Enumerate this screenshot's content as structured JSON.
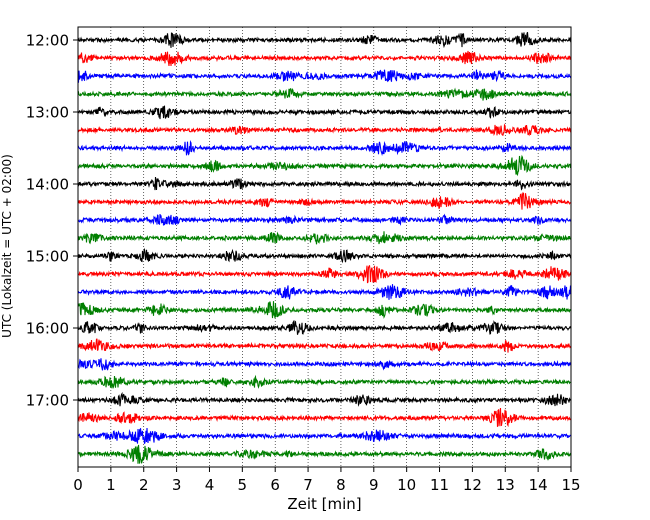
{
  "chart_data": {
    "type": "line",
    "title": "",
    "xlabel": "Zeit  [min]",
    "ylabel": "UTC (Lokalzeit = UTC + 02:00)",
    "xlim": [
      0,
      15
    ],
    "x_ticks": [
      "0",
      "1",
      "2",
      "3",
      "4",
      "5",
      "6",
      "7",
      "8",
      "9",
      "10",
      "11",
      "12",
      "13",
      "14",
      "15"
    ],
    "y_tick_labels": [
      "12:00",
      "13:00",
      "14:00",
      "15:00",
      "16:00",
      "17:00"
    ],
    "trace_colors": [
      "#000000",
      "#ff0000",
      "#0000ff",
      "#007f00"
    ],
    "grid": {
      "x_dotted": true,
      "y": false
    },
    "traces": [
      {
        "start": "12:00",
        "color": "#000000"
      },
      {
        "start": "12:15",
        "color": "#ff0000"
      },
      {
        "start": "12:30",
        "color": "#0000ff"
      },
      {
        "start": "12:45",
        "color": "#007f00"
      },
      {
        "start": "13:00",
        "color": "#000000"
      },
      {
        "start": "13:15",
        "color": "#ff0000"
      },
      {
        "start": "13:30",
        "color": "#0000ff"
      },
      {
        "start": "13:45",
        "color": "#007f00"
      },
      {
        "start": "14:00",
        "color": "#000000"
      },
      {
        "start": "14:15",
        "color": "#ff0000"
      },
      {
        "start": "14:30",
        "color": "#0000ff"
      },
      {
        "start": "14:45",
        "color": "#007f00"
      },
      {
        "start": "15:00",
        "color": "#000000"
      },
      {
        "start": "15:15",
        "color": "#ff0000"
      },
      {
        "start": "15:30",
        "color": "#0000ff"
      },
      {
        "start": "15:45",
        "color": "#007f00"
      },
      {
        "start": "16:00",
        "color": "#000000"
      },
      {
        "start": "16:15",
        "color": "#ff0000"
      },
      {
        "start": "16:30",
        "color": "#0000ff"
      },
      {
        "start": "16:45",
        "color": "#007f00"
      },
      {
        "start": "17:00",
        "color": "#000000"
      },
      {
        "start": "17:15",
        "color": "#ff0000"
      },
      {
        "start": "17:30",
        "color": "#0000ff"
      },
      {
        "start": "17:45",
        "color": "#007f00"
      }
    ]
  }
}
